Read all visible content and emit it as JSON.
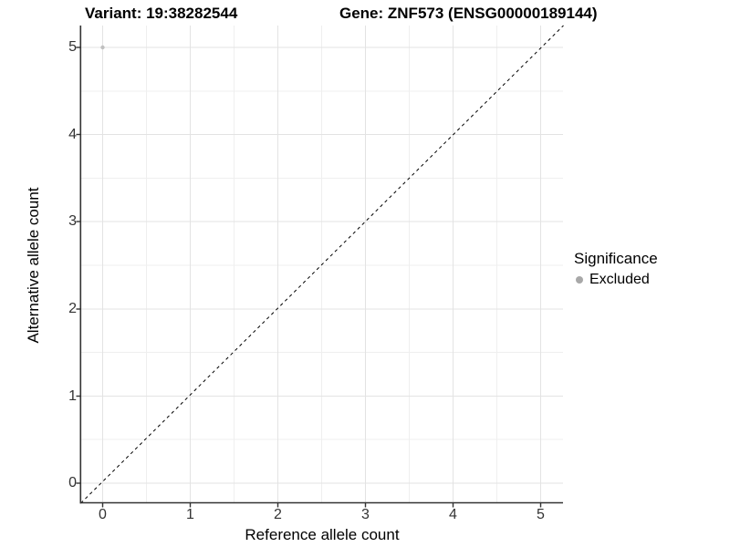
{
  "chart_data": {
    "type": "scatter",
    "title_left": "Variant: 19:38282544",
    "title_right": "Gene: ZNF573 (ENSG00000189144)",
    "xlabel": "Reference allele count",
    "ylabel": "Alternative allele count",
    "x_ticks": [
      "0",
      "1",
      "2",
      "3",
      "4",
      "5"
    ],
    "y_ticks": [
      "0",
      "1",
      "2",
      "3",
      "4",
      "5"
    ],
    "xlim": [
      -0.25,
      5.25
    ],
    "ylim": [
      -0.25,
      5.25
    ],
    "grid": {
      "major_every": 1,
      "minor_every": 0.5,
      "major_color": "#e3e3e3",
      "minor_color": "#efefef"
    },
    "points": [
      {
        "x": 0,
        "y": 5,
        "significance": "Excluded"
      }
    ],
    "point_color": "#c0c0c0",
    "point_radius": 2.2,
    "reference_line": {
      "type": "identity",
      "equation": "y = x",
      "style": "dashed",
      "color": "#000000"
    },
    "legend": {
      "title": "Significance",
      "position": "right",
      "entries": [
        {
          "label": "Excluded",
          "color": "#a8a8a8"
        }
      ]
    }
  }
}
